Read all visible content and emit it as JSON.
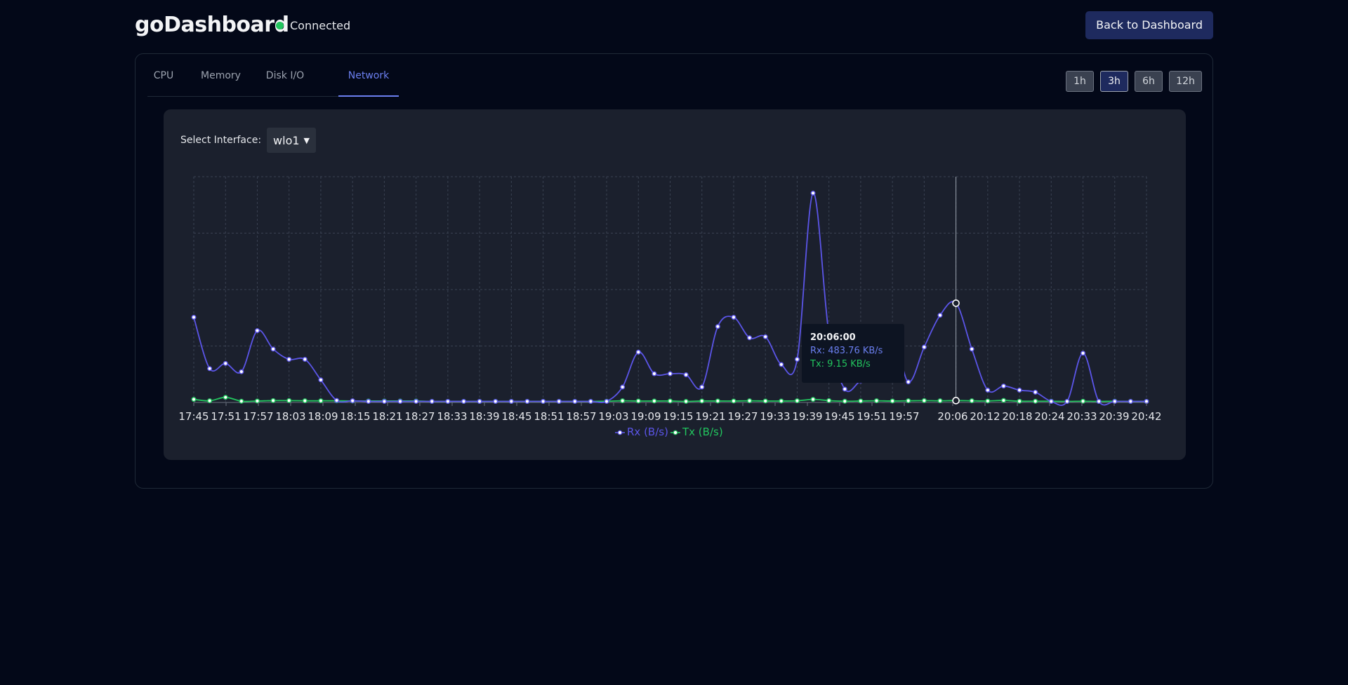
{
  "header": {
    "brand": "goDashboard",
    "status": "Connected",
    "back_label": "Back to Dashboard"
  },
  "tabs": [
    "CPU",
    "Memory",
    "Disk I/O",
    "Network"
  ],
  "active_tab": "Network",
  "ranges": [
    "1h",
    "3h",
    "6h",
    "12h"
  ],
  "active_range": "3h",
  "interface": {
    "label": "Select Interface:",
    "selected": "wlo1"
  },
  "tooltip": {
    "time": "20:06:00",
    "rx": "Rx: 483.76 KB/s",
    "tx": "Tx: 9.15 KB/s"
  },
  "colors": {
    "rx": "#5b55e8",
    "tx": "#22c55e",
    "accent": "#6b7ff0"
  },
  "chart_data": {
    "type": "line",
    "title": "",
    "xlabel": "",
    "ylabel": "",
    "grid": true,
    "legend": "bottom",
    "x_tick_labels": [
      "17:45",
      "17:51",
      "17:57",
      "18:03",
      "18:09",
      "18:15",
      "18:21",
      "18:27",
      "18:33",
      "18:39",
      "18:45",
      "18:51",
      "18:57",
      "19:03",
      "19:09",
      "19:15",
      "19:21",
      "19:27",
      "19:33",
      "19:39",
      "19:45",
      "19:51",
      "19:57",
      "20:06",
      "20:12",
      "20:18",
      "20:24",
      "20:33",
      "20:39",
      "20:42"
    ],
    "series": [
      {
        "name": "Rx (B/s)",
        "color": "#5b55e8",
        "values": [
          415,
          165,
          190,
          150,
          350,
          260,
          210,
          210,
          110,
          10,
          8,
          5,
          5,
          5,
          5,
          5,
          5,
          5,
          5,
          5,
          5,
          5,
          5,
          5,
          5,
          5,
          5,
          75,
          245,
          140,
          140,
          135,
          75,
          370,
          415,
          315,
          320,
          185,
          210,
          1020,
          335,
          65,
          105,
          130,
          340,
          100,
          270,
          425,
          483.76,
          260,
          60,
          80,
          60,
          50,
          5,
          5,
          240,
          5,
          5,
          5,
          5
        ]
      },
      {
        "name": "Tx (B/s)",
        "color": "#22c55e",
        "values": [
          15,
          8,
          25,
          6,
          7,
          9,
          9,
          8,
          8,
          8,
          7,
          7,
          7,
          7,
          7,
          5,
          5,
          5,
          5,
          5,
          5,
          5,
          5,
          5,
          5,
          5,
          6,
          8,
          7,
          7,
          7,
          5,
          7,
          7,
          7,
          8,
          7,
          7,
          8,
          15,
          9,
          6,
          7,
          8,
          7,
          8,
          9,
          8,
          9.15,
          8,
          7,
          10,
          6,
          6,
          6,
          5,
          6,
          5,
          6,
          5,
          5
        ]
      }
    ]
  }
}
